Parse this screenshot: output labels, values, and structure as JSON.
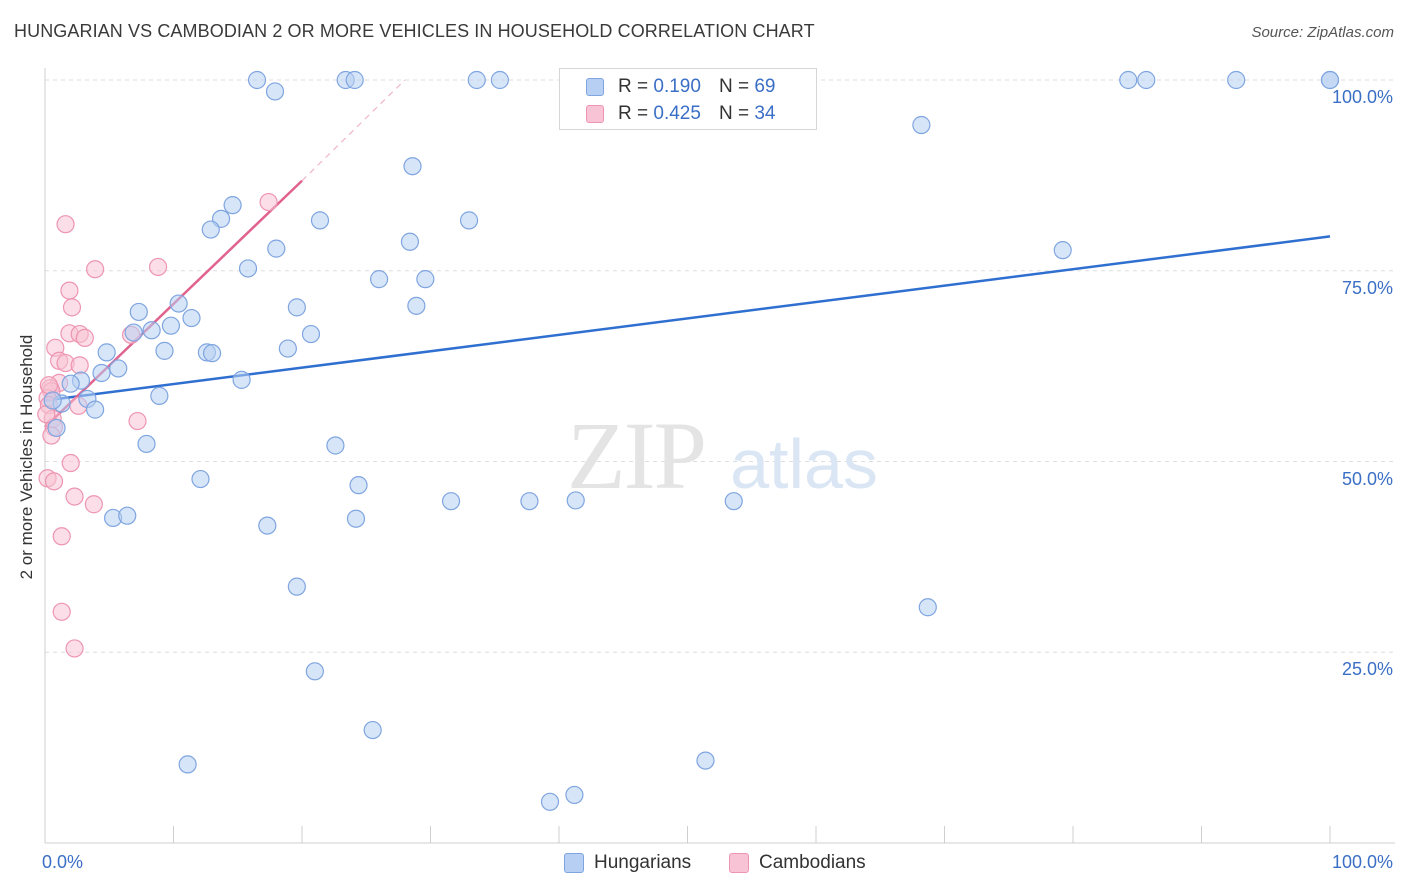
{
  "title": "HUNGARIAN VS CAMBODIAN 2 OR MORE VEHICLES IN HOUSEHOLD CORRELATION CHART",
  "source": "Source: ZipAtlas.com",
  "watermark": {
    "zip": "ZIP",
    "atlas": "atlas"
  },
  "legend_top": {
    "rows": [
      {
        "r_label": "R = ",
        "r_value": "0.190",
        "n_label": "N = ",
        "n_value": "69"
      },
      {
        "r_label": "R = ",
        "r_value": "0.425",
        "n_label": "N = ",
        "n_value": "34"
      }
    ]
  },
  "legend_bottom": {
    "items": [
      "Hungarians",
      "Cambodians"
    ]
  },
  "colors": {
    "hungarians_fill": "#b7cff2",
    "hungarians_stroke": "#7fa5e0",
    "hungarians_line": "#2f6fd0",
    "cambodians_fill": "#f8c3d4",
    "cambodians_stroke": "#ee95b2",
    "cambodians_line": "#e0628e",
    "tick_text": "#3b6fc6",
    "grid": "#dddddd"
  },
  "chart_data": {
    "type": "scatter",
    "title": "HUNGARIAN VS CAMBODIAN 2 OR MORE VEHICLES IN HOUSEHOLD CORRELATION CHART",
    "xlabel": "",
    "ylabel": "2 or more Vehicles in Household",
    "xlim": [
      0,
      100
    ],
    "ylim": [
      0,
      100
    ],
    "x_tick_labels": {
      "min": "0.0%",
      "max": "100.0%"
    },
    "y_tick_labels": [
      "25.0%",
      "50.0%",
      "75.0%",
      "100.0%"
    ],
    "y_ticks": [
      25,
      50,
      75,
      100
    ],
    "grid": true,
    "legend_position": "top-center",
    "series": [
      {
        "name": "Hungarians",
        "r": 0.19,
        "n": 69,
        "trend": {
          "x": [
            0,
            100
          ],
          "y": [
            58.0,
            79.5
          ]
        },
        "points": [
          [
            16.5,
            100
          ],
          [
            17.9,
            98.5
          ],
          [
            23.4,
            100
          ],
          [
            24.1,
            100
          ],
          [
            33.6,
            100
          ],
          [
            35.4,
            100
          ],
          [
            68.2,
            94.1
          ],
          [
            85.7,
            100
          ],
          [
            92.7,
            100
          ],
          [
            100.0,
            100
          ],
          [
            100.0,
            100
          ],
          [
            84.3,
            100
          ],
          [
            28.6,
            88.7
          ],
          [
            14.6,
            83.6
          ],
          [
            13.7,
            81.8
          ],
          [
            12.9,
            80.4
          ],
          [
            21.4,
            81.6
          ],
          [
            33.0,
            81.6
          ],
          [
            28.4,
            78.8
          ],
          [
            18.0,
            77.9
          ],
          [
            15.8,
            75.3
          ],
          [
            26.0,
            73.9
          ],
          [
            29.6,
            73.9
          ],
          [
            79.2,
            77.7
          ],
          [
            10.4,
            70.7
          ],
          [
            19.6,
            70.2
          ],
          [
            7.3,
            69.6
          ],
          [
            11.4,
            68.8
          ],
          [
            28.9,
            70.4
          ],
          [
            9.8,
            67.8
          ],
          [
            8.3,
            67.2
          ],
          [
            6.9,
            66.9
          ],
          [
            20.7,
            66.7
          ],
          [
            18.9,
            64.8
          ],
          [
            9.3,
            64.5
          ],
          [
            12.6,
            64.3
          ],
          [
            13.0,
            64.2
          ],
          [
            4.8,
            64.3
          ],
          [
            5.7,
            62.2
          ],
          [
            4.4,
            61.6
          ],
          [
            15.3,
            60.7
          ],
          [
            2.8,
            60.6
          ],
          [
            2.0,
            60.2
          ],
          [
            8.9,
            58.6
          ],
          [
            3.3,
            58.2
          ],
          [
            1.3,
            57.6
          ],
          [
            0.6,
            58.0
          ],
          [
            3.9,
            56.8
          ],
          [
            0.9,
            54.4
          ],
          [
            22.6,
            52.1
          ],
          [
            7.9,
            52.3
          ],
          [
            12.1,
            47.7
          ],
          [
            24.4,
            46.9
          ],
          [
            31.6,
            44.8
          ],
          [
            37.7,
            44.8
          ],
          [
            41.3,
            44.9
          ],
          [
            53.6,
            44.8
          ],
          [
            5.3,
            42.6
          ],
          [
            6.4,
            42.9
          ],
          [
            17.3,
            41.6
          ],
          [
            24.2,
            42.5
          ],
          [
            19.6,
            33.6
          ],
          [
            68.7,
            30.9
          ],
          [
            21.0,
            22.5
          ],
          [
            25.5,
            14.8
          ],
          [
            11.1,
            10.3
          ],
          [
            51.4,
            10.8
          ],
          [
            39.3,
            5.4
          ],
          [
            41.2,
            6.3
          ]
        ]
      },
      {
        "name": "Cambodians",
        "r": 0.425,
        "n": 34,
        "trend": {
          "x": [
            0,
            20
          ],
          "y": [
            54.5,
            86.8
          ]
        },
        "trend_dashed": {
          "x": [
            20,
            28
          ],
          "y": [
            86.8,
            100
          ]
        },
        "points": [
          [
            17.4,
            84.0
          ],
          [
            1.6,
            81.1
          ],
          [
            3.9,
            75.2
          ],
          [
            8.8,
            75.5
          ],
          [
            1.9,
            72.4
          ],
          [
            2.1,
            70.2
          ],
          [
            1.9,
            66.8
          ],
          [
            2.7,
            66.7
          ],
          [
            3.1,
            66.2
          ],
          [
            6.7,
            66.6
          ],
          [
            0.8,
            64.9
          ],
          [
            1.1,
            63.2
          ],
          [
            1.6,
            62.9
          ],
          [
            2.7,
            62.6
          ],
          [
            1.1,
            60.3
          ],
          [
            0.4,
            59.6
          ],
          [
            0.5,
            59.2
          ],
          [
            0.2,
            58.3
          ],
          [
            0.3,
            57.4
          ],
          [
            2.6,
            57.3
          ],
          [
            0.6,
            55.6
          ],
          [
            7.2,
            55.3
          ],
          [
            0.7,
            54.5
          ],
          [
            0.5,
            53.4
          ],
          [
            2.0,
            49.8
          ],
          [
            0.2,
            47.8
          ],
          [
            0.7,
            47.4
          ],
          [
            2.3,
            45.4
          ],
          [
            3.8,
            44.4
          ],
          [
            1.3,
            40.2
          ],
          [
            1.3,
            30.3
          ],
          [
            2.3,
            25.5
          ],
          [
            0.1,
            56.2
          ],
          [
            0.3,
            60.0
          ]
        ]
      }
    ]
  }
}
